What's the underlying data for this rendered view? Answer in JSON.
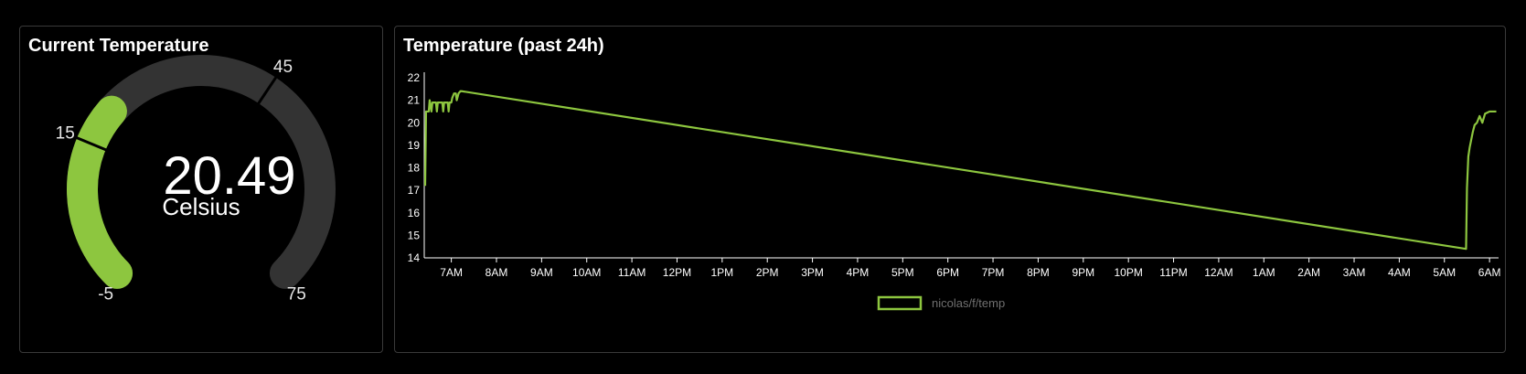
{
  "colors": {
    "background": "#000000",
    "panel_border": "#3a3a3a",
    "gauge_track": "#333333",
    "accent_green": "#8dc63f",
    "text": "#ffffff",
    "legend_text": "#6f6f6f"
  },
  "gauge": {
    "title": "Current Temperature",
    "value": 20.49,
    "value_text": "20.49",
    "unit": "Celsius",
    "min": -5,
    "max": 75,
    "min_label": "-5",
    "max_label": "75",
    "segment_marks": [
      15,
      45
    ],
    "segment_mark_labels": [
      "15",
      "45"
    ]
  },
  "chart_panel": {
    "title": "Temperature (past 24h)"
  },
  "chart_data": {
    "type": "line",
    "title": "Temperature (past 24h)",
    "ylim": [
      14,
      22
    ],
    "y_ticks": [
      14,
      15,
      16,
      17,
      18,
      19,
      20,
      21,
      22
    ],
    "x_range_hours": [
      6.4,
      30.2
    ],
    "x_ticks": [
      {
        "h": 7,
        "label": "7AM"
      },
      {
        "h": 8,
        "label": "8AM"
      },
      {
        "h": 9,
        "label": "9AM"
      },
      {
        "h": 10,
        "label": "10AM"
      },
      {
        "h": 11,
        "label": "11AM"
      },
      {
        "h": 12,
        "label": "12PM"
      },
      {
        "h": 13,
        "label": "1PM"
      },
      {
        "h": 14,
        "label": "2PM"
      },
      {
        "h": 15,
        "label": "3PM"
      },
      {
        "h": 16,
        "label": "4PM"
      },
      {
        "h": 17,
        "label": "5PM"
      },
      {
        "h": 18,
        "label": "6PM"
      },
      {
        "h": 19,
        "label": "7PM"
      },
      {
        "h": 20,
        "label": "8PM"
      },
      {
        "h": 21,
        "label": "9PM"
      },
      {
        "h": 22,
        "label": "10PM"
      },
      {
        "h": 23,
        "label": "11PM"
      },
      {
        "h": 24,
        "label": "12AM"
      },
      {
        "h": 25,
        "label": "1AM"
      },
      {
        "h": 26,
        "label": "2AM"
      },
      {
        "h": 27,
        "label": "3AM"
      },
      {
        "h": 28,
        "label": "4AM"
      },
      {
        "h": 29,
        "label": "5AM"
      },
      {
        "h": 30,
        "label": "6AM"
      }
    ],
    "series": [
      {
        "name": "nicolas/f/temp",
        "color": "#8dc63f",
        "points": [
          [
            6.42,
            17.2
          ],
          [
            6.44,
            20.5
          ],
          [
            6.5,
            20.5
          ],
          [
            6.52,
            21.0
          ],
          [
            6.56,
            20.5
          ],
          [
            6.58,
            20.9
          ],
          [
            6.66,
            20.9
          ],
          [
            6.68,
            20.5
          ],
          [
            6.7,
            20.9
          ],
          [
            6.8,
            20.9
          ],
          [
            6.82,
            20.5
          ],
          [
            6.84,
            20.9
          ],
          [
            6.92,
            20.9
          ],
          [
            6.94,
            20.5
          ],
          [
            6.96,
            20.9
          ],
          [
            7.0,
            20.9
          ],
          [
            7.02,
            21.1
          ],
          [
            7.06,
            21.3
          ],
          [
            7.1,
            21.3
          ],
          [
            7.12,
            21.0
          ],
          [
            7.16,
            21.3
          ],
          [
            7.2,
            21.4
          ],
          [
            7.24,
            21.4
          ],
          [
            29.48,
            14.4
          ],
          [
            29.5,
            17.1
          ],
          [
            29.53,
            18.5
          ],
          [
            29.56,
            18.9
          ],
          [
            29.59,
            19.2
          ],
          [
            29.63,
            19.6
          ],
          [
            29.67,
            19.9
          ],
          [
            29.72,
            20.0
          ],
          [
            29.78,
            20.3
          ],
          [
            29.84,
            20.0
          ],
          [
            29.9,
            20.4
          ],
          [
            30.0,
            20.5
          ],
          [
            30.15,
            20.5
          ]
        ]
      }
    ],
    "legend_position": "bottom-center",
    "grid": false
  }
}
